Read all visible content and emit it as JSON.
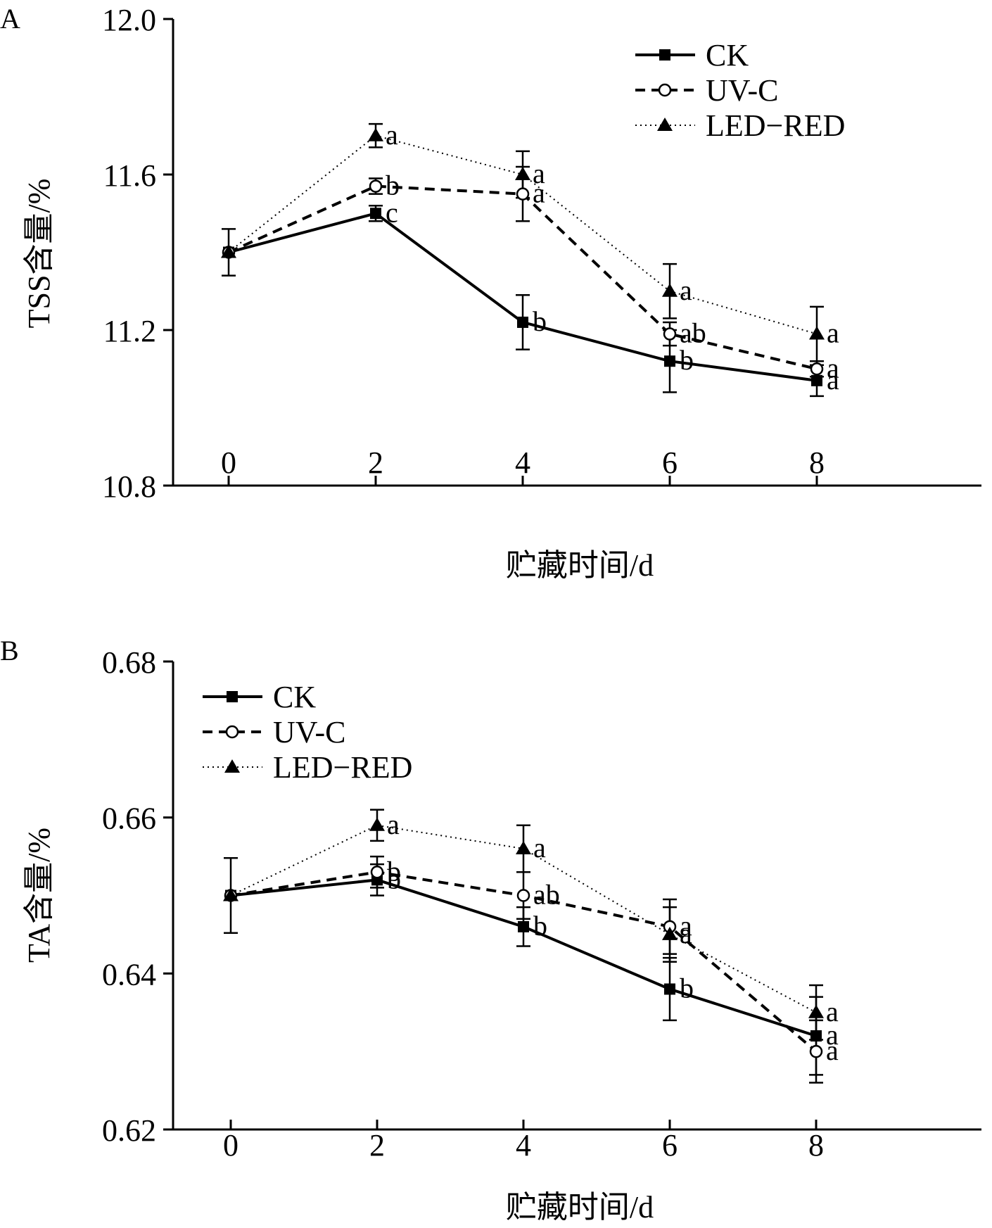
{
  "chart_data": [
    {
      "type": "line",
      "panel_label": "A",
      "xlabel": "贮藏时间/d",
      "ylabel": "TSS含量/%",
      "x": [
        0,
        2,
        4,
        6,
        8
      ],
      "xticks": [
        "0",
        "2",
        "4",
        "6",
        "8"
      ],
      "ylim": [
        10.8,
        12.0
      ],
      "yticks": [
        "10.8",
        "11.2",
        "11.6",
        "12.0"
      ],
      "legend_position": "top-right",
      "series": [
        {
          "name": "CK",
          "style": "solid",
          "marker": "square-filled",
          "values": [
            11.4,
            11.5,
            11.22,
            11.12,
            11.07
          ],
          "errors": [
            0.06,
            0.02,
            0.07,
            0.08,
            0.04
          ],
          "sig": [
            "",
            "c",
            "b",
            "b",
            "a"
          ]
        },
        {
          "name": "UV-C",
          "style": "dashed",
          "marker": "circle-open",
          "values": [
            11.4,
            11.57,
            11.55,
            11.19,
            11.1
          ],
          "errors": [
            0.0,
            0.02,
            0.07,
            0.03,
            0.02
          ],
          "sig": [
            "",
            "b",
            "a",
            "ab",
            "a"
          ]
        },
        {
          "name": "LED−RED",
          "style": "dotted",
          "marker": "triangle-filled",
          "values": [
            11.4,
            11.7,
            11.6,
            11.3,
            11.19
          ],
          "errors": [
            0.0,
            0.03,
            0.06,
            0.07,
            0.07
          ],
          "sig": [
            "",
            "a",
            "a",
            "a",
            "a"
          ]
        }
      ]
    },
    {
      "type": "line",
      "panel_label": "B",
      "xlabel": "贮藏时间/d",
      "ylabel": "TA含量/%",
      "x": [
        0,
        2,
        4,
        6,
        8
      ],
      "xticks": [
        "0",
        "2",
        "4",
        "6",
        "8"
      ],
      "ylim": [
        0.62,
        0.68
      ],
      "yticks": [
        "0.62",
        "0.64",
        "0.66",
        "0.68"
      ],
      "legend_position": "top-left",
      "series": [
        {
          "name": "CK",
          "style": "solid",
          "marker": "square-filled",
          "values": [
            0.65,
            0.652,
            0.646,
            0.638,
            0.632
          ],
          "errors": [
            0.0048,
            0.002,
            0.0025,
            0.004,
            0.005
          ],
          "sig": [
            "",
            "b",
            "b",
            "b",
            "a"
          ]
        },
        {
          "name": "UV-C",
          "style": "dashed",
          "marker": "circle-open",
          "values": [
            0.65,
            0.653,
            0.65,
            0.646,
            0.63
          ],
          "errors": [
            0.0,
            0.002,
            0.003,
            0.0035,
            0.004
          ],
          "sig": [
            "",
            "b",
            "ab",
            "a",
            "a"
          ]
        },
        {
          "name": "LED−RED",
          "style": "dotted",
          "marker": "triangle-filled",
          "values": [
            0.65,
            0.659,
            0.656,
            0.645,
            0.635
          ],
          "errors": [
            0.0,
            0.002,
            0.003,
            0.0035,
            0.0035
          ],
          "sig": [
            "",
            "a",
            "a",
            "a",
            "a"
          ]
        }
      ]
    }
  ]
}
